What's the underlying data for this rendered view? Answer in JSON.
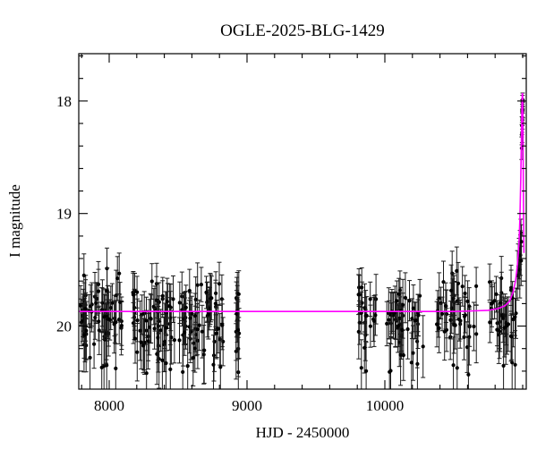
{
  "title": "OGLE-2025-BLG-1429",
  "colors": {
    "background": "#ffffff",
    "frame": "#000000",
    "marker": "#000000",
    "error_bar": "#1a1a1a",
    "model": "#ff00ff"
  },
  "chart_data": {
    "type": "scatter",
    "title": "OGLE-2025-BLG-1429",
    "xlabel": "HJD - 2450000",
    "ylabel": "I magnitude",
    "xlim": [
      7779,
      11026
    ],
    "ylim_mag": [
      20.56,
      17.58
    ],
    "y_inverted": true,
    "grid": false,
    "legend": "none",
    "x_major_ticks": [
      8000,
      9000,
      10000
    ],
    "x_minor_step": 200,
    "y_major_ticks": [
      18,
      19,
      20
    ],
    "y_minor_step": 0.2,
    "model": {
      "color": "#ff00ff",
      "baseline_mag": 19.87,
      "peak_hjd": 10998,
      "peak_mag": 17.93,
      "curve": [
        [
          7779,
          19.87
        ],
        [
          9000,
          19.87
        ],
        [
          10000,
          19.87
        ],
        [
          10500,
          19.87
        ],
        [
          10650,
          19.865
        ],
        [
          10750,
          19.86
        ],
        [
          10820,
          19.845
        ],
        [
          10870,
          19.82
        ],
        [
          10905,
          19.78
        ],
        [
          10930,
          19.7
        ],
        [
          10948,
          19.6
        ],
        [
          10962,
          19.46
        ],
        [
          10973,
          19.27
        ],
        [
          10980,
          19.05
        ],
        [
          10986,
          18.72
        ],
        [
          10990,
          18.38
        ],
        [
          10994,
          18.05
        ],
        [
          10997,
          17.95
        ],
        [
          10998,
          17.93
        ],
        [
          11000,
          17.96
        ],
        [
          11002,
          18.15
        ],
        [
          11004,
          18.55
        ],
        [
          11006,
          18.95
        ],
        [
          11008,
          19.22
        ],
        [
          11009,
          19.35
        ]
      ]
    },
    "baseline_seasons": [
      {
        "name": "season-1",
        "hjd_range": [
          7790,
          8095
        ],
        "n": 68,
        "mag_mean": 19.93,
        "mag_sd": 0.17,
        "seed": 11
      },
      {
        "name": "season-2",
        "hjd_range": [
          8170,
          8478
        ],
        "n": 62,
        "mag_mean": 19.92,
        "mag_sd": 0.17,
        "seed": 22
      },
      {
        "name": "season-3",
        "hjd_range": [
          8508,
          8832
        ],
        "n": 62,
        "mag_mean": 19.94,
        "mag_sd": 0.17,
        "seed": 33
      },
      {
        "name": "season-4",
        "hjd_range": [
          8910,
          8942
        ],
        "n": 14,
        "mag_mean": 19.9,
        "mag_sd": 0.16,
        "seed": 44
      },
      {
        "name": "season-5",
        "hjd_range": [
          9806,
          9936
        ],
        "n": 22,
        "mag_mean": 19.9,
        "mag_sd": 0.18,
        "seed": 55
      },
      {
        "name": "season-6",
        "hjd_range": [
          10002,
          10278
        ],
        "n": 46,
        "mag_mean": 19.93,
        "mag_sd": 0.17,
        "seed": 66
      },
      {
        "name": "season-7",
        "hjd_range": [
          10372,
          10666
        ],
        "n": 46,
        "mag_mean": 19.93,
        "mag_sd": 0.17,
        "seed": 77
      },
      {
        "name": "season-8",
        "hjd_range": [
          10760,
          10955
        ],
        "n": 36,
        "mag_mean": 19.9,
        "mag_sd": 0.16,
        "seed": 88
      }
    ],
    "event_points": [
      [
        10962,
        19.55,
        0.22
      ],
      [
        10968,
        19.47,
        0.2
      ],
      [
        10974,
        19.4,
        0.18
      ],
      [
        10979,
        19.5,
        0.25
      ],
      [
        10981,
        19.3,
        0.15
      ],
      [
        10984,
        19.37,
        0.18
      ],
      [
        10987,
        19.17,
        0.12
      ],
      [
        10989,
        19.42,
        0.22
      ],
      [
        10991,
        19.25,
        0.15
      ],
      [
        10993,
        18.42,
        0.1
      ],
      [
        10994,
        18.3,
        0.09
      ],
      [
        10995,
        18.22,
        0.08
      ],
      [
        10996,
        18.28,
        0.09
      ],
      [
        10996.5,
        18.15,
        0.07
      ],
      [
        10997.5,
        18.1,
        0.07
      ],
      [
        10998,
        18.17,
        0.08
      ],
      [
        10998.5,
        18.05,
        0.06
      ],
      [
        10999,
        18.01,
        0.06
      ],
      [
        11000,
        17.99,
        0.06
      ],
      [
        11000.5,
        18.08,
        0.07
      ]
    ]
  }
}
